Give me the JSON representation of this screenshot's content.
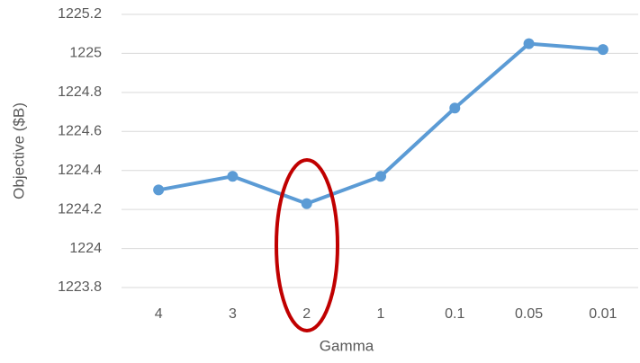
{
  "chart_data": {
    "type": "line",
    "x_label": "Gamma",
    "y_label": "Objective ($B)",
    "categories": [
      "4",
      "3",
      "2",
      "1",
      "0.1",
      "0.05",
      "0.01"
    ],
    "values": [
      1224.3,
      1224.37,
      1224.23,
      1224.37,
      1224.72,
      1225.05,
      1225.02
    ],
    "color": "#5b9bd5",
    "ylim": [
      1223.8,
      1225.2
    ],
    "yticks": [
      1223.8,
      1224,
      1224.2,
      1224.4,
      1224.6,
      1224.8,
      1225,
      1225.2
    ],
    "grid": true
  }
}
